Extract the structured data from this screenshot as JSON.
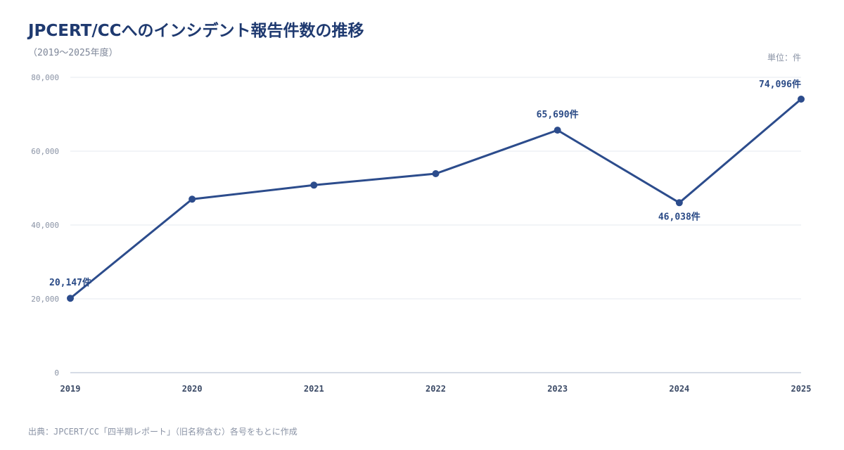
{
  "header": {
    "title": "JPCERT/CCへのインシデント報告件数の推移",
    "subtitle": "（2019～2025年度）",
    "unit": "単位：件"
  },
  "footer": {
    "source": "出典：JPCERT/CC「四半期レポート」（旧名称含む）各号をもとに作成"
  },
  "chart_data": {
    "type": "line",
    "categories": [
      "2019",
      "2020",
      "2021",
      "2022",
      "2023",
      "2024",
      "2025"
    ],
    "series": [
      {
        "values": [
          20147,
          47000,
          50800,
          53900,
          65690,
          46038,
          74096
        ],
        "color": "#2c4c8c"
      }
    ],
    "ylim": [
      0,
      80000
    ],
    "yticks": [
      0,
      20000,
      40000,
      60000,
      80000
    ],
    "ytick_labels": [
      "0",
      "20,000",
      "40,000",
      "60,000",
      "80,000"
    ],
    "grid": true,
    "annotations": [
      {
        "index": 0,
        "label": "20,147件",
        "position": "above"
      },
      {
        "index": 4,
        "label": "65,690件",
        "position": "above"
      },
      {
        "index": 5,
        "label": "46,038件",
        "position": "below"
      },
      {
        "index": 6,
        "label": "74,096件",
        "position": "above-left"
      }
    ],
    "colors": {
      "line": "#2c4c8c",
      "grid": "#e6e9ef",
      "axis": "#c9d1de"
    }
  }
}
